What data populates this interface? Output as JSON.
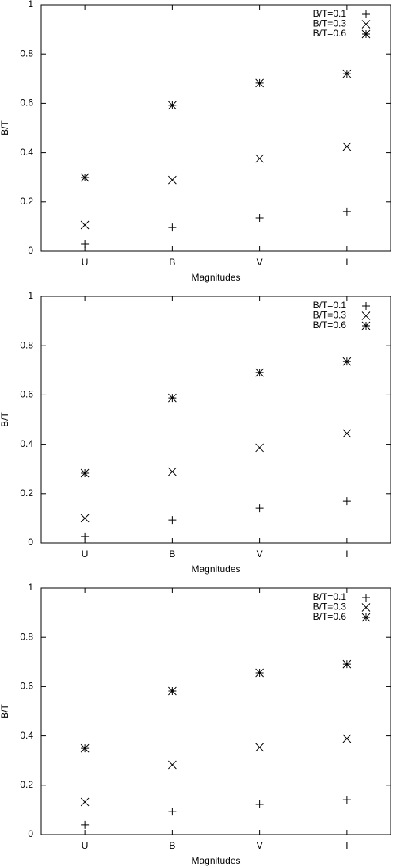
{
  "chart_data": [
    {
      "type": "scatter",
      "x_label": "Magnitudes",
      "y_label": "B/T",
      "categories": [
        "U",
        "B",
        "V",
        "I"
      ],
      "ylim": [
        0,
        1
      ],
      "yticks": [
        0,
        0.2,
        0.4,
        0.6,
        0.8,
        1
      ],
      "legend": "upper right",
      "series": [
        {
          "name": "B/T=0.1",
          "color": "#000000",
          "marker": "plus",
          "values": [
            0.029,
            0.096,
            0.135,
            0.161
          ]
        },
        {
          "name": "B/T=0.3",
          "color": "#000000",
          "marker": "x",
          "values": [
            0.106,
            0.289,
            0.376,
            0.424
          ]
        },
        {
          "name": "B/T=0.6",
          "color": "#000000",
          "marker": "star",
          "values": [
            0.299,
            0.592,
            0.682,
            0.72
          ]
        }
      ]
    },
    {
      "type": "scatter",
      "x_label": "Magnitudes",
      "y_label": "B/T",
      "categories": [
        "U",
        "B",
        "V",
        "I"
      ],
      "ylim": [
        0,
        1
      ],
      "yticks": [
        0,
        0.2,
        0.4,
        0.6,
        0.8,
        1
      ],
      "legend": "upper right",
      "series": [
        {
          "name": "B/T=0.1",
          "color": "#000000",
          "marker": "plus",
          "values": [
            0.026,
            0.093,
            0.141,
            0.17
          ]
        },
        {
          "name": "B/T=0.3",
          "color": "#000000",
          "marker": "x",
          "values": [
            0.1,
            0.289,
            0.386,
            0.444
          ]
        },
        {
          "name": "B/T=0.6",
          "color": "#000000",
          "marker": "star",
          "values": [
            0.283,
            0.588,
            0.691,
            0.736
          ]
        }
      ]
    },
    {
      "type": "scatter",
      "x_label": "Magnitudes",
      "y_label": "B/T",
      "categories": [
        "U",
        "B",
        "V",
        "I"
      ],
      "ylim": [
        0,
        1
      ],
      "yticks": [
        0,
        0.2,
        0.4,
        0.6,
        0.8,
        1
      ],
      "legend": "upper right",
      "series": [
        {
          "name": "B/T=0.1",
          "color": "#000000",
          "marker": "plus",
          "values": [
            0.039,
            0.093,
            0.122,
            0.141
          ]
        },
        {
          "name": "B/T=0.3",
          "color": "#000000",
          "marker": "x",
          "values": [
            0.132,
            0.283,
            0.354,
            0.389
          ]
        },
        {
          "name": "B/T=0.6",
          "color": "#000000",
          "marker": "star",
          "values": [
            0.35,
            0.582,
            0.656,
            0.691
          ]
        }
      ]
    }
  ]
}
